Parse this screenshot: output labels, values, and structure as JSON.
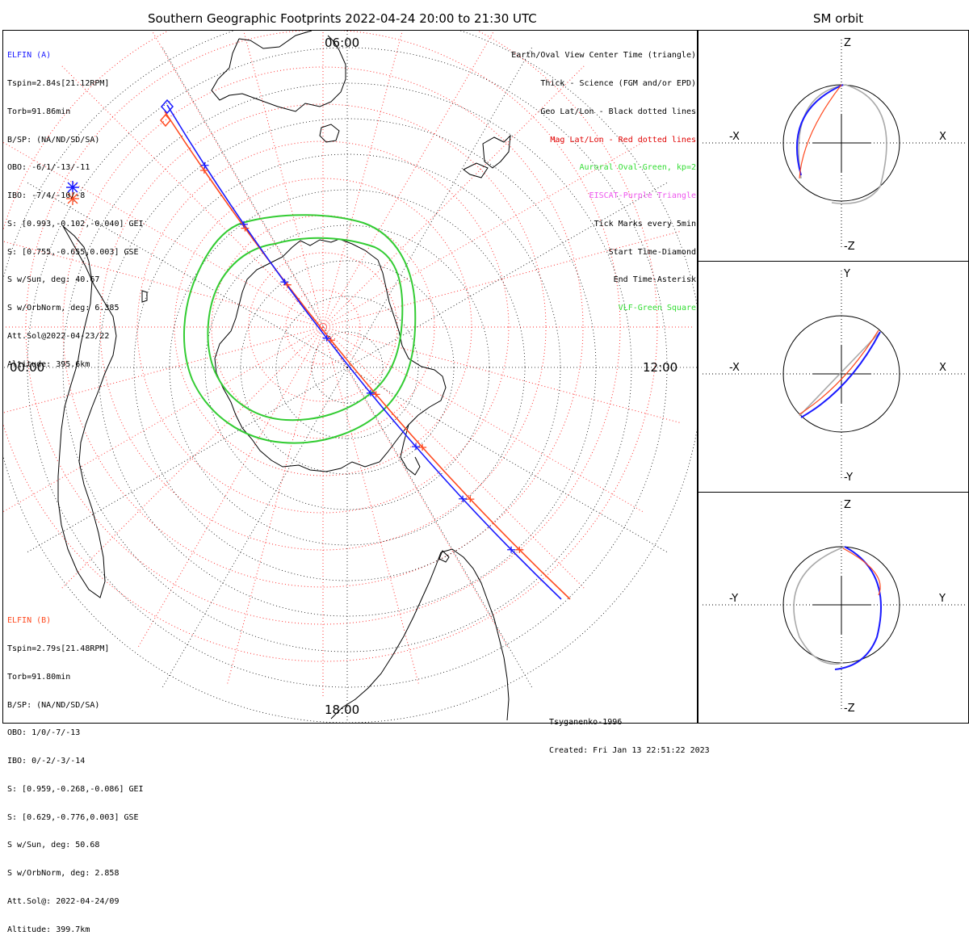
{
  "header": {
    "main_title": "Southern Geographic Footprints 2022-04-24 20:00 to 21:30 UTC",
    "sm_title": "SM orbit"
  },
  "map": {
    "time_labels": {
      "top": "06:00",
      "left": "00:00",
      "right": "12:00",
      "bottom": "18:00"
    }
  },
  "elfin_a": {
    "name": "ELFIN (A)",
    "color": "#1a1aff",
    "lines": [
      "Tspin=2.84s[21.12RPM]",
      "Torb=91.86min",
      "B/SP: (NA/ND/SD/SA)",
      "OBO: -6/1/-13/-11",
      "IBO: -7/4/-10/-8",
      "S: [0.993,-0.102,-0.040] GEI",
      "S: [0.755,-0.655,0.003] GSE",
      "S w/Sun, deg: 40.67",
      "S w/OrbNorm, deg: 6.385",
      "Att.Sol@2022-04-23/22",
      "Altitude: 395.6km"
    ]
  },
  "elfin_b": {
    "name": "ELFIN (B)",
    "color": "#ff4a20",
    "lines": [
      "Tspin=2.79s[21.48RPM]",
      "Torb=91.80min",
      "B/SP: (NA/ND/SD/SA)",
      "OBO: 1/0/-7/-13",
      "IBO: 0/-2/-3/-14",
      "S: [0.959,-0.268,-0.086] GEI",
      "S: [0.629,-0.776,0.003] GSE",
      "S w/Sun, deg: 50.68",
      "S w/OrbNorm, deg: 2.858",
      "Att.Sol@: 2022-04-24/09",
      "Altitude: 399.7km"
    ]
  },
  "legend": [
    {
      "text": "Earth/Oval View Center Time (triangle)",
      "color": "#000000"
    },
    {
      "text": "Thick - Science (FGM and/or EPD)",
      "color": "#000000"
    },
    {
      "text": "Geo Lat/Lon - Black dotted lines",
      "color": "#000000"
    },
    {
      "text": "Mag Lat/Lon - Red dotted lines",
      "color": "#e00000"
    },
    {
      "text": "Auroral Oval-Green, kp=2",
      "color": "#33dd33"
    },
    {
      "text": "EISCAT-Purple Triangle",
      "color": "#ee55ee"
    },
    {
      "text": "Tick Marks every 5min",
      "color": "#000000"
    },
    {
      "text": "Start Time-Diamond",
      "color": "#000000"
    },
    {
      "text": "End Time-Asterisk",
      "color": "#000000"
    },
    {
      "text": "VLF-Green Square",
      "color": "#33dd33"
    }
  ],
  "credits": {
    "model": "Tsyganenko-1996",
    "created": "Created: Fri Jan 13 22:51:22 2023"
  },
  "sm_panels": [
    {
      "top": "Z",
      "bottom": "-Z",
      "left": "-X",
      "right": "X"
    },
    {
      "top": "Y",
      "bottom": "-Y",
      "left": "-X",
      "right": "X"
    },
    {
      "top": "Z",
      "bottom": "-Z",
      "left": "-Y",
      "right": "Y"
    }
  ],
  "colors": {
    "elfin_a": "#1a1aff",
    "elfin_b": "#ff4a20",
    "auroral_oval": "#33cc33",
    "orbit_gray": "#aaaaaa",
    "mag_grid": "#ff3030"
  }
}
